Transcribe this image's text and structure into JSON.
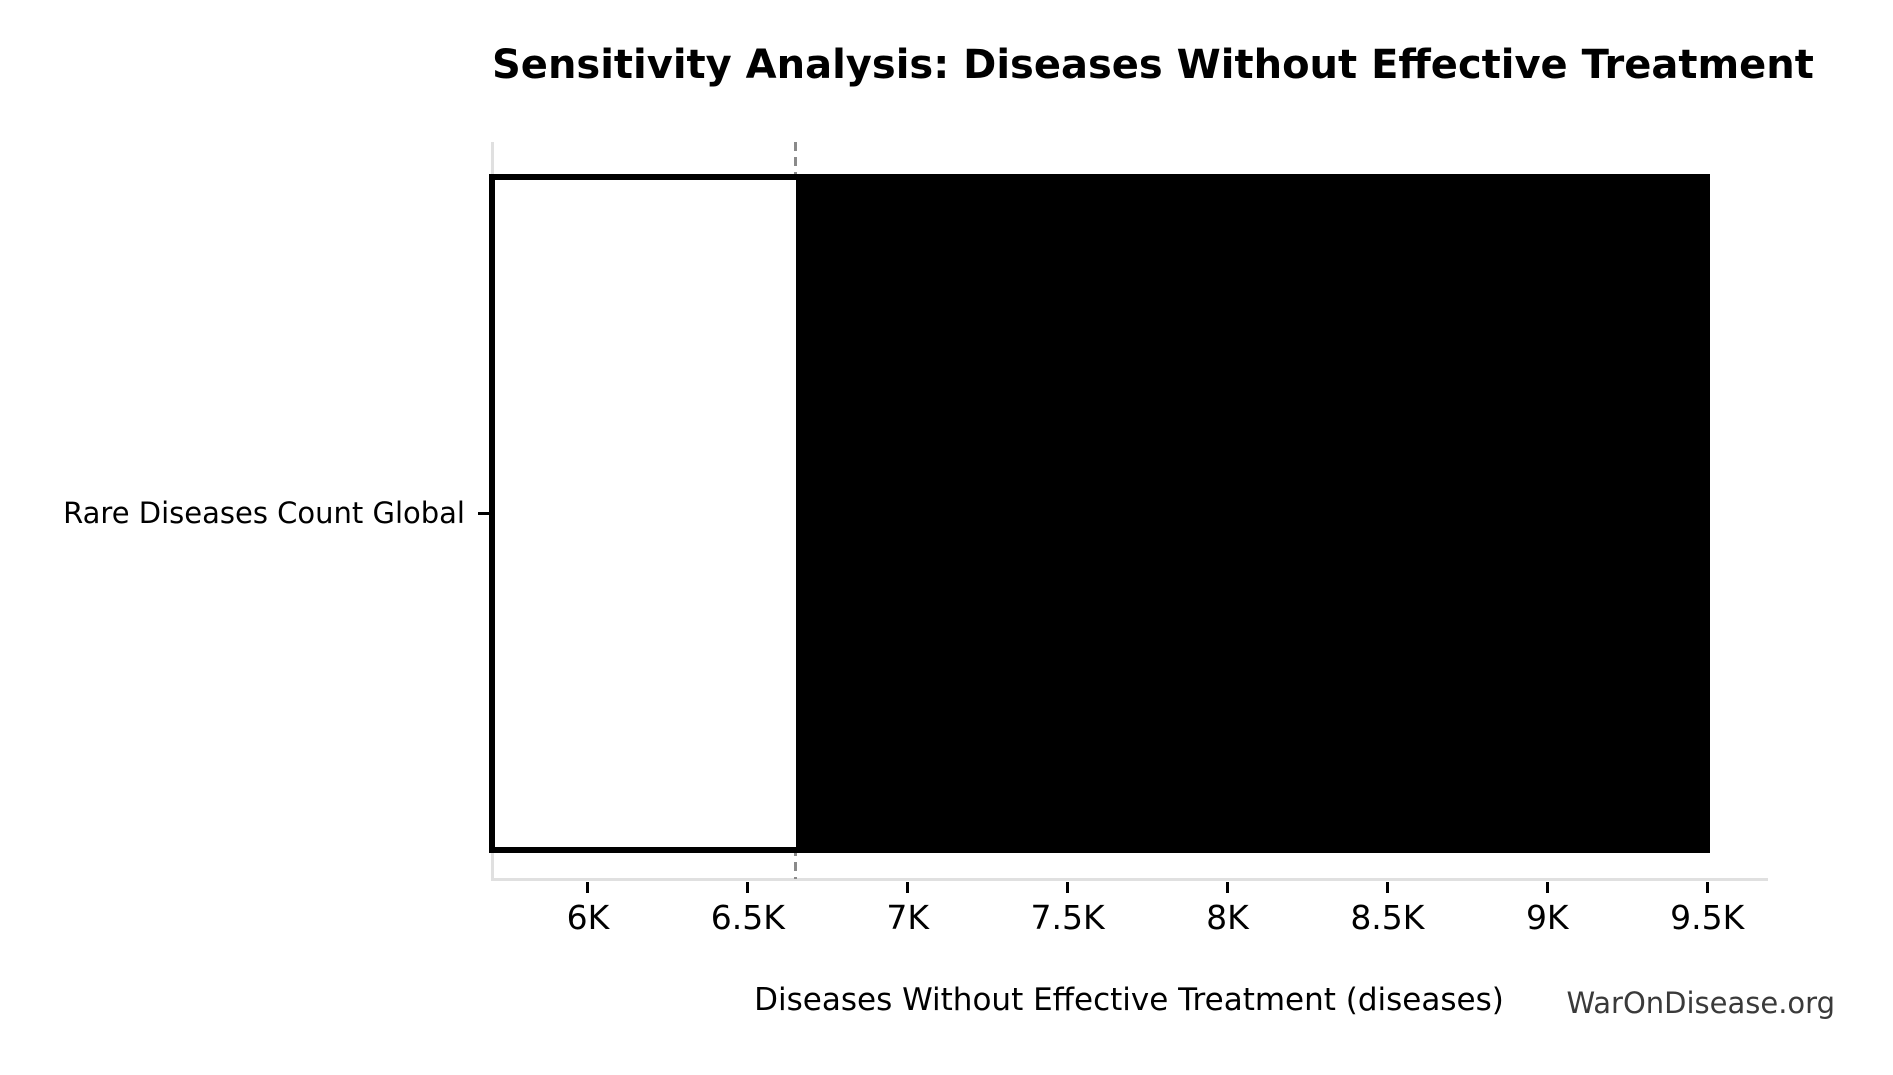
{
  "title": "Sensitivity Analysis: Diseases Without Effective Treatment",
  "watermark": "WarOnDisease.org",
  "chart_data": {
    "type": "bar",
    "subtype": "tornado-sensitivity",
    "orientation": "horizontal",
    "title": "Sensitivity Analysis: Diseases Without Effective Treatment",
    "xlabel": "Diseases Without Effective Treatment (diseases)",
    "ylabel": "",
    "categories": [
      "Rare Diseases Count Global"
    ],
    "bars": [
      {
        "parameter": "Rare Diseases Count Global",
        "low": 5700,
        "baseline": 6650,
        "high": 9500
      }
    ],
    "xlim": [
      5700,
      9684
    ],
    "xticks": [
      {
        "value": 6000,
        "label": "6K"
      },
      {
        "value": 6500,
        "label": "6.5K"
      },
      {
        "value": 7000,
        "label": "7K"
      },
      {
        "value": 7500,
        "label": "7.5K"
      },
      {
        "value": 8000,
        "label": "8K"
      },
      {
        "value": 8500,
        "label": "8.5K"
      },
      {
        "value": 9000,
        "label": "9K"
      },
      {
        "value": 9500,
        "label": "9.5K"
      }
    ],
    "grid": false,
    "legend": null,
    "colors": {
      "low_fill": "#ffffff",
      "high_fill": "#000000",
      "bar_edge": "#000000",
      "baseline_line": "#8a8a8a",
      "spine": "#e0e0e0",
      "tick": "#000000",
      "text": "#000000",
      "watermark": "#3a3a3a",
      "background": "#ffffff"
    }
  }
}
